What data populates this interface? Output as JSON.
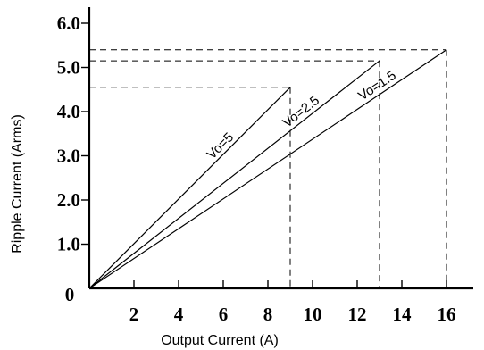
{
  "chart_data": {
    "type": "line",
    "xlabel": "Output Current (A)",
    "ylabel": "Ripple Current (Arms)",
    "xlim": [
      0,
      17.5
    ],
    "ylim": [
      0,
      6.2
    ],
    "origin_label": "0",
    "x_ticks": [
      2,
      4,
      6,
      8,
      10,
      12,
      14,
      16
    ],
    "x_tick_labels": [
      "2",
      "4",
      "6",
      "8",
      "10",
      "12",
      "14",
      "16"
    ],
    "y_ticks": [
      1,
      2,
      3,
      4,
      5,
      6
    ],
    "y_tick_labels": [
      "1.0",
      "2.0",
      "3.0",
      "4.0",
      "5.0",
      "6.0"
    ],
    "grid": false,
    "series": [
      {
        "name": "Vo=5",
        "x": [
          0,
          9
        ],
        "y": [
          0,
          4.55
        ]
      },
      {
        "name": "Vo=2.5",
        "x": [
          0,
          13
        ],
        "y": [
          0,
          5.15
        ]
      },
      {
        "name": "Vo=1.5",
        "x": [
          0,
          16
        ],
        "y": [
          0,
          5.4
        ]
      }
    ]
  }
}
